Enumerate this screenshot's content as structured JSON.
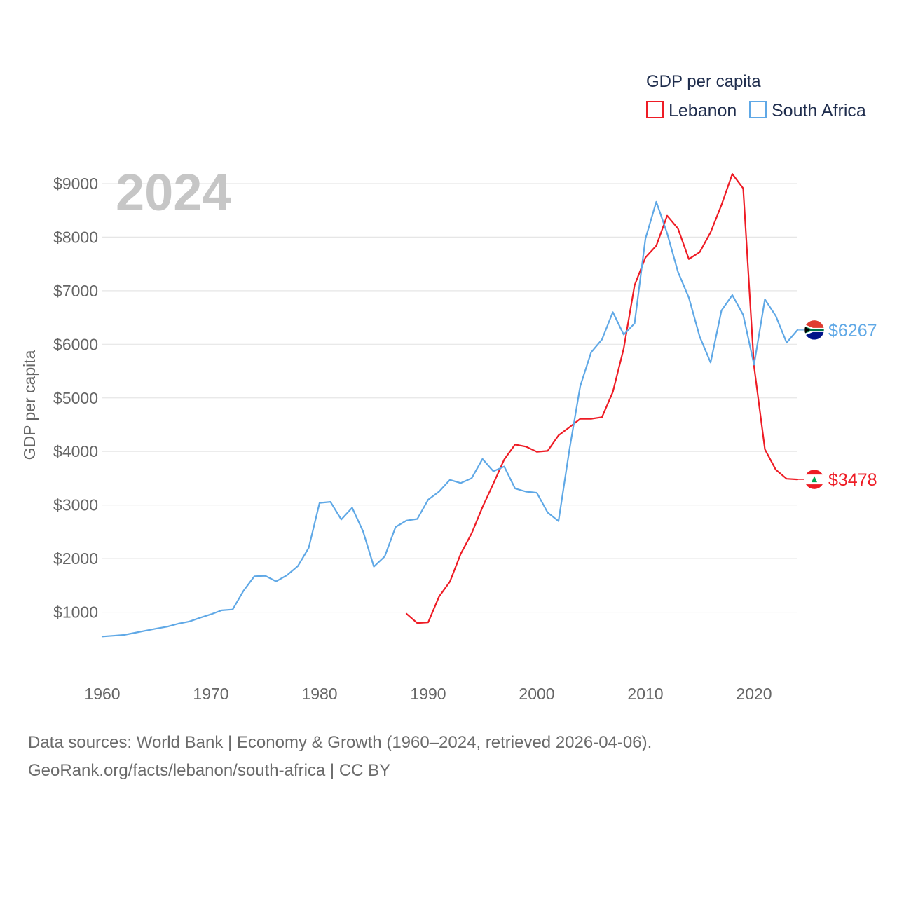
{
  "chart_data": {
    "type": "line",
    "title": "GDP per capita",
    "ylabel": "GDP per capita",
    "xlabel": "",
    "current_year_label": "2024",
    "xlim": [
      1960,
      2024
    ],
    "ylim": [
      0,
      9500
    ],
    "x_ticks": [
      "1960",
      "1970",
      "1980",
      "1990",
      "2000",
      "2010",
      "2020"
    ],
    "y_ticks": [
      "$1000",
      "$2000",
      "$3000",
      "$4000",
      "$5000",
      "$6000",
      "$7000",
      "$8000",
      "$9000"
    ],
    "grid": true,
    "legend_position": "top-right",
    "series": [
      {
        "name": "Lebanon",
        "color": "#ee1c25",
        "end_label": "$3478",
        "x": [
          1988,
          1989,
          1990,
          1991,
          1992,
          1993,
          1994,
          1995,
          1996,
          1997,
          1998,
          1999,
          2000,
          2001,
          2002,
          2003,
          2004,
          2005,
          2006,
          2007,
          2008,
          2009,
          2010,
          2011,
          2012,
          2013,
          2014,
          2015,
          2016,
          2017,
          2018,
          2019,
          2020,
          2021,
          2022,
          2023,
          2024
        ],
        "values": [
          970,
          795,
          810,
          1290,
          1570,
          2090,
          2470,
          2960,
          3400,
          3850,
          4130,
          4090,
          3995,
          4010,
          4300,
          4450,
          4610,
          4610,
          4640,
          5110,
          5920,
          7100,
          7620,
          7840,
          8400,
          8160,
          7590,
          7720,
          8090,
          8600,
          9180,
          8910,
          5590,
          4040,
          3660,
          3490,
          3478
        ]
      },
      {
        "name": "South Africa",
        "color": "#5fa8e6",
        "end_label": "$6267",
        "x": [
          1960,
          1961,
          1962,
          1963,
          1964,
          1965,
          1966,
          1967,
          1968,
          1969,
          1970,
          1971,
          1972,
          1973,
          1974,
          1975,
          1976,
          1977,
          1978,
          1979,
          1980,
          1981,
          1982,
          1983,
          1984,
          1985,
          1986,
          1987,
          1988,
          1989,
          1990,
          1991,
          1992,
          1993,
          1994,
          1995,
          1996,
          1997,
          1998,
          1999,
          2000,
          2001,
          2002,
          2003,
          2004,
          2005,
          2006,
          2007,
          2008,
          2009,
          2010,
          2011,
          2012,
          2013,
          2014,
          2015,
          2016,
          2017,
          2018,
          2019,
          2020,
          2021,
          2022,
          2023,
          2024
        ],
        "values": [
          545,
          560,
          575,
          615,
          655,
          695,
          730,
          785,
          825,
          895,
          960,
          1035,
          1050,
          1400,
          1670,
          1680,
          1575,
          1690,
          1860,
          2200,
          3040,
          3060,
          2730,
          2950,
          2510,
          1850,
          2040,
          2590,
          2710,
          2740,
          3100,
          3250,
          3470,
          3410,
          3500,
          3860,
          3630,
          3720,
          3310,
          3250,
          3230,
          2860,
          2700,
          4030,
          5220,
          5850,
          6090,
          6600,
          6180,
          6390,
          7970,
          8660,
          8070,
          7350,
          6870,
          6140,
          5660,
          6630,
          6920,
          6550,
          5620,
          6840,
          6530,
          6030,
          6267
        ]
      }
    ]
  },
  "footer": {
    "line1": "Data sources: World Bank | Economy & Growth (1960–2024, retrieved 2026-04-06).",
    "line2": "GeoRank.org/facts/lebanon/south-africa | CC BY"
  }
}
